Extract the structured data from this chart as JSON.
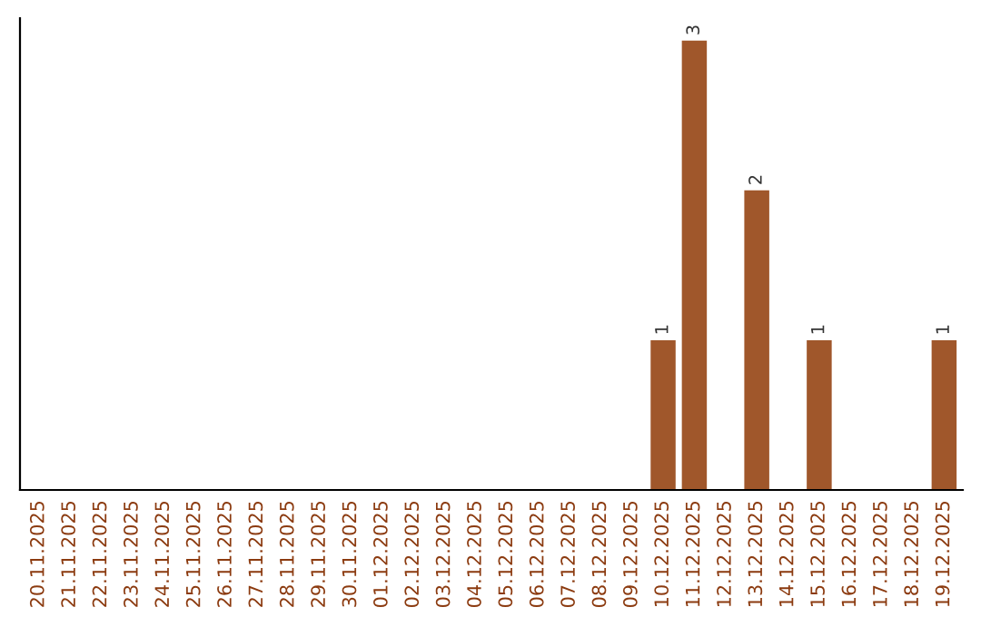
{
  "chart_data": {
    "type": "bar",
    "categories": [
      "20.11.2025",
      "21.11.2025",
      "22.11.2025",
      "23.11.2025",
      "24.11.2025",
      "25.11.2025",
      "26.11.2025",
      "27.11.2025",
      "28.11.2025",
      "29.11.2025",
      "30.11.2025",
      "01.12.2025",
      "02.12.2025",
      "03.12.2025",
      "04.12.2025",
      "05.12.2025",
      "06.12.2025",
      "07.12.2025",
      "08.12.2025",
      "09.12.2025",
      "10.12.2025",
      "11.12.2025",
      "12.12.2025",
      "13.12.2025",
      "14.12.2025",
      "15.12.2025",
      "16.12.2025",
      "17.12.2025",
      "18.12.2025",
      "19.12.2025"
    ],
    "values": [
      null,
      null,
      null,
      null,
      null,
      null,
      null,
      null,
      null,
      null,
      null,
      null,
      null,
      null,
      null,
      null,
      null,
      null,
      null,
      null,
      1,
      3,
      null,
      2,
      null,
      1,
      null,
      null,
      null,
      1
    ],
    "data_labels": true,
    "color": "#a0572b",
    "grid": false,
    "legend": false
  }
}
